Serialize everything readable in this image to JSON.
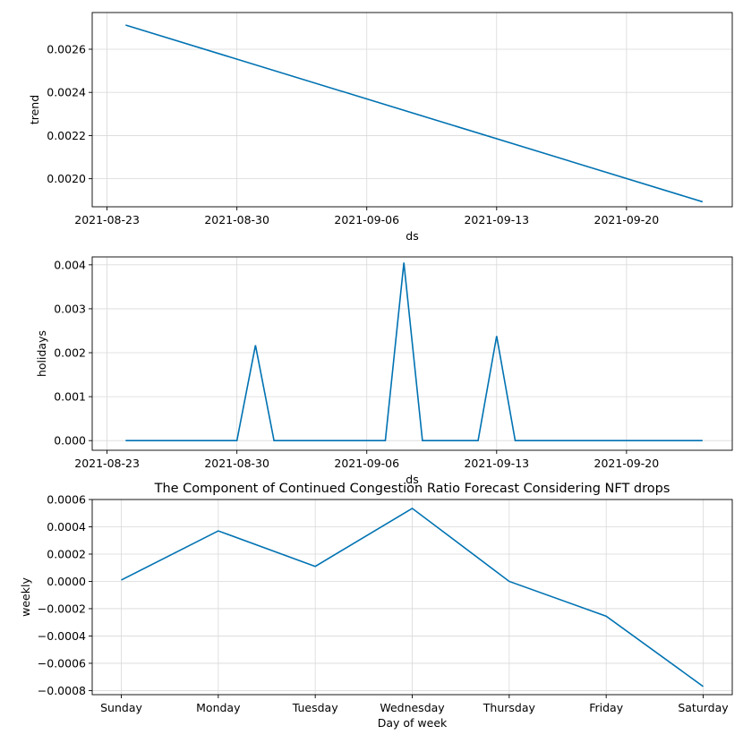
{
  "colors": {
    "line": "#0072B2",
    "grid": "#d9d9d9",
    "frame": "#000000"
  },
  "chart_data": [
    {
      "id": "trend",
      "type": "line",
      "title": "",
      "xlabel": "ds",
      "ylabel": "trend",
      "x_is_date": true,
      "xlim": [
        -0.8,
        33.7
      ],
      "ylim": [
        0.00187,
        0.00277
      ],
      "xticks": [
        {
          "v": 0,
          "label": "2021-08-23"
        },
        {
          "v": 7,
          "label": "2021-08-30"
        },
        {
          "v": 14,
          "label": "2021-09-06"
        },
        {
          "v": 21,
          "label": "2021-09-13"
        },
        {
          "v": 28,
          "label": "2021-09-20"
        }
      ],
      "yticks": [
        {
          "v": 0.002,
          "label": "0.0020"
        },
        {
          "v": 0.0022,
          "label": "0.0022"
        },
        {
          "v": 0.0024,
          "label": "0.0024"
        },
        {
          "v": 0.0026,
          "label": "0.0026"
        }
      ],
      "series": [
        {
          "name": "trend",
          "x": [
            1,
            32.1
          ],
          "y": [
            0.002712,
            0.001893
          ]
        }
      ]
    },
    {
      "id": "holidays",
      "type": "line",
      "title": "",
      "xlabel": "ds",
      "ylabel": "holidays",
      "x_is_date": true,
      "xlim": [
        -0.8,
        33.7
      ],
      "ylim": [
        -0.00022,
        0.00418
      ],
      "xticks": [
        {
          "v": 0,
          "label": "2021-08-23"
        },
        {
          "v": 7,
          "label": "2021-08-30"
        },
        {
          "v": 14,
          "label": "2021-09-06"
        },
        {
          "v": 21,
          "label": "2021-09-13"
        },
        {
          "v": 28,
          "label": "2021-09-20"
        }
      ],
      "yticks": [
        {
          "v": 0,
          "label": "0.000"
        },
        {
          "v": 0.001,
          "label": "0.001"
        },
        {
          "v": 0.002,
          "label": "0.002"
        },
        {
          "v": 0.003,
          "label": "0.003"
        },
        {
          "v": 0.004,
          "label": "0.004"
        }
      ],
      "series": [
        {
          "name": "holidays",
          "x": [
            1,
            7,
            8,
            9,
            15,
            16,
            17,
            20,
            21,
            22,
            32.1
          ],
          "y": [
            0,
            0,
            0.00217,
            0,
            0,
            0.00405,
            0,
            0,
            0.00238,
            0,
            0
          ]
        }
      ]
    },
    {
      "id": "weekly",
      "type": "line",
      "title": "The Component of Continued Congestion Ratio Forecast Considering NFT drops",
      "xlabel": "Day of week",
      "ylabel": "weekly",
      "x_is_date": false,
      "xlim": [
        -0.3,
        6.3
      ],
      "ylim": [
        -0.00083,
        0.0006
      ],
      "xticks": [
        {
          "v": 0,
          "label": "Sunday"
        },
        {
          "v": 1,
          "label": "Monday"
        },
        {
          "v": 2,
          "label": "Tuesday"
        },
        {
          "v": 3,
          "label": "Wednesday"
        },
        {
          "v": 4,
          "label": "Thursday"
        },
        {
          "v": 5,
          "label": "Friday"
        },
        {
          "v": 6,
          "label": "Saturday"
        }
      ],
      "yticks": [
        {
          "v": -0.0008,
          "label": "−0.0008"
        },
        {
          "v": -0.0006,
          "label": "−0.0006"
        },
        {
          "v": -0.0004,
          "label": "−0.0004"
        },
        {
          "v": -0.0002,
          "label": "−0.0002"
        },
        {
          "v": 0,
          "label": "0.0000"
        },
        {
          "v": 0.0002,
          "label": "0.0002"
        },
        {
          "v": 0.0004,
          "label": "0.0004"
        },
        {
          "v": 0.0006,
          "label": "0.0006"
        }
      ],
      "series": [
        {
          "name": "weekly",
          "x": [
            0,
            1,
            2,
            3,
            4,
            5,
            6
          ],
          "y": [
            1e-05,
            0.00037,
            0.00011,
            0.000535,
            0.0,
            -0.000255,
            -0.00077
          ]
        }
      ]
    }
  ]
}
